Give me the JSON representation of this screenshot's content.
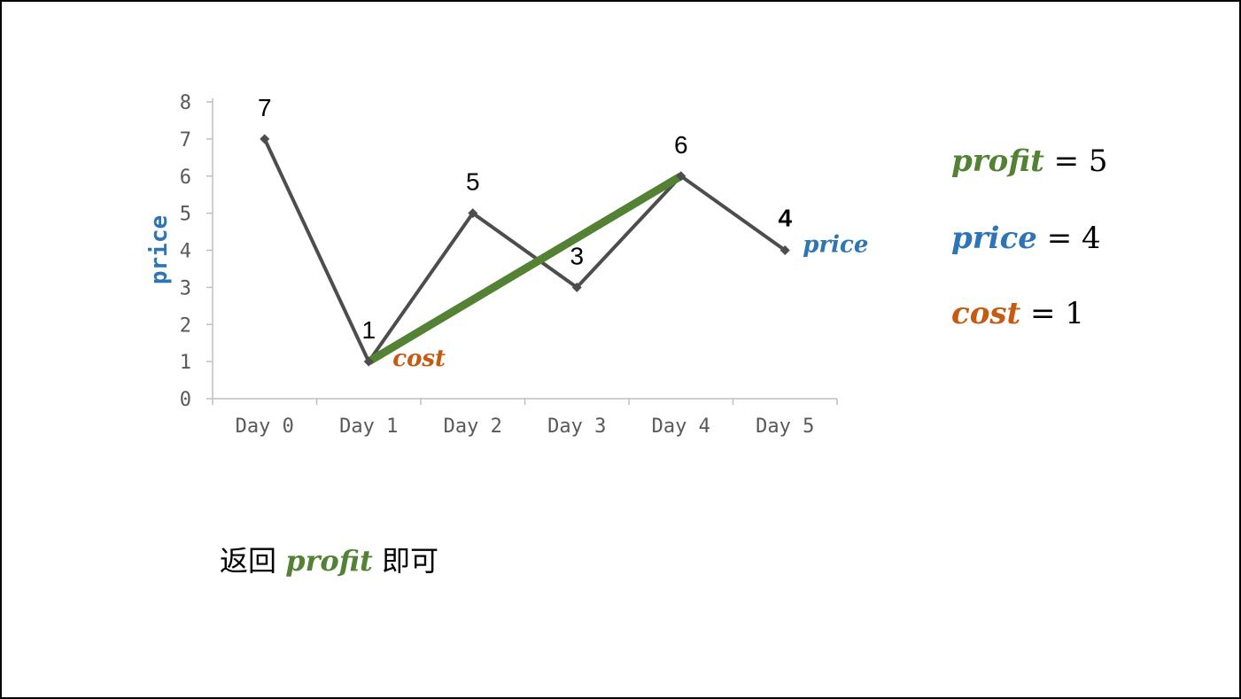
{
  "colors": {
    "line": "#4D4D4D",
    "profit": "#548235",
    "price": "#2E75B6",
    "cost": "#C55A11",
    "axis": "#BFBFBF"
  },
  "chart_data": {
    "type": "line",
    "categories": [
      "Day 0",
      "Day 1",
      "Day 2",
      "Day 3",
      "Day 4",
      "Day 5"
    ],
    "values": [
      7,
      1,
      5,
      3,
      6,
      4
    ],
    "data_labels": [
      "7",
      "1",
      "5",
      "3",
      "6",
      "4"
    ],
    "ylabel": "price",
    "ylim": [
      0,
      8
    ],
    "yticks": [
      "0",
      "1",
      "2",
      "3",
      "4",
      "5",
      "6",
      "7",
      "8"
    ],
    "grid": false,
    "profit_segment": {
      "from": "Day 1",
      "to": "Day 4",
      "from_value": 1,
      "to_value": 6
    },
    "annotations": {
      "cost_point": "cost",
      "price_point": "price"
    }
  },
  "equations": {
    "profit": {
      "var": "profit",
      "op": " = ",
      "value": "5"
    },
    "price": {
      "var": "price",
      "op": " = ",
      "value": "4"
    },
    "cost": {
      "var": "cost",
      "op": " = ",
      "value": "1"
    }
  },
  "footer": {
    "prefix": "返回 ",
    "var": "profit",
    "suffix": " 即可"
  }
}
